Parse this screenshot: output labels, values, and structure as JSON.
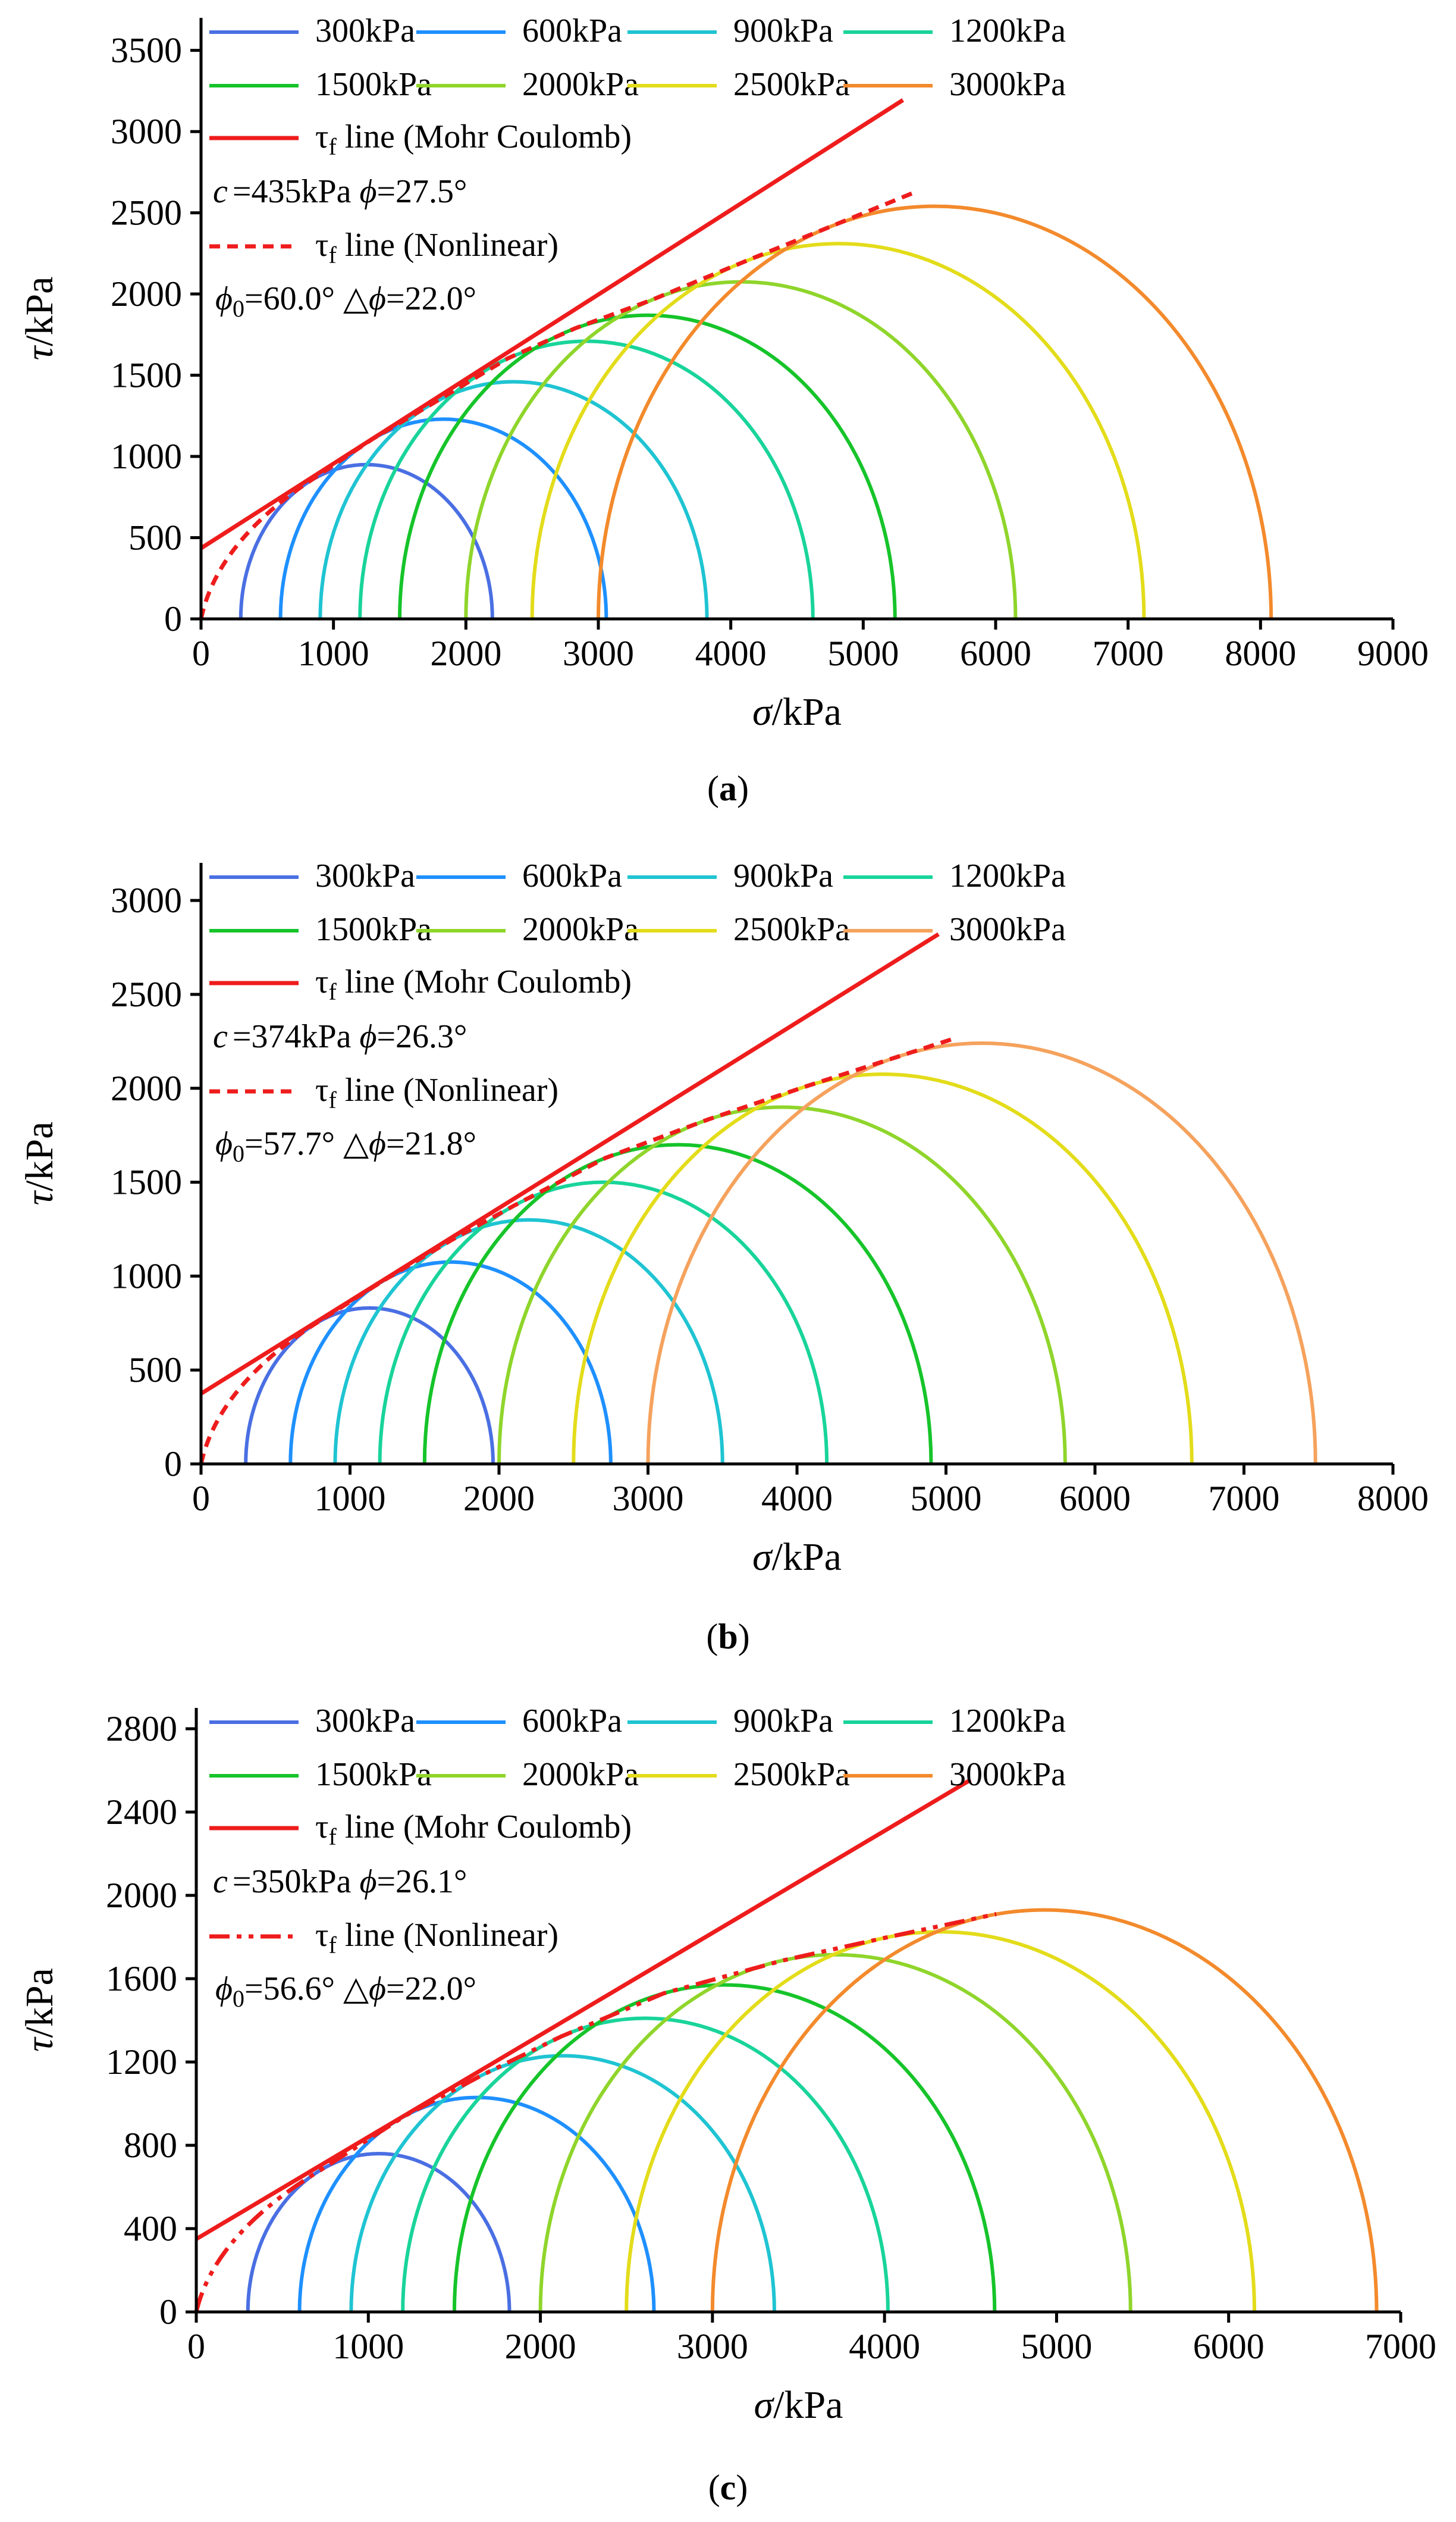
{
  "figure": {
    "panels": [
      {
        "label_open": "(",
        "label_letter": "a",
        "label_close": ")",
        "c_text": "=435kPa",
        "phi_text": "=27.5°",
        "phi0_text": "=60.0°",
        "dphi_text": "=22.0°"
      },
      {
        "label_open": "(",
        "label_letter": "b",
        "label_close": ")",
        "c_text": "=374kPa",
        "phi_text": "=26.3°",
        "phi0_text": "=57.7°",
        "dphi_text": "=21.8°"
      },
      {
        "label_open": "(",
        "label_letter": "c",
        "label_close": ")",
        "c_text": "=350kPa",
        "phi_text": "=26.1°",
        "phi0_text": "=56.6°",
        "dphi_text": "=22.0°"
      }
    ],
    "legend": {
      "mc_tau": "τ",
      "mc_sub": "f",
      "mc_rest": " line (Mohr Coulomb)",
      "nl_tau": "τ",
      "nl_sub": "f",
      "nl_rest": " line (Nonlinear)",
      "c_symbol": "c",
      "phi_symbol": "ϕ",
      "phi0_symbol": "ϕ",
      "phi0_sub": "0",
      "dphi_symbol": "△ϕ"
    },
    "axis_titles": {
      "x_sym": "σ",
      "x_unit": "/kPa",
      "y_sym": "τ",
      "y_unit": "/kPa"
    }
  },
  "chart_data": [
    {
      "type": "line",
      "title": "(a)",
      "xlabel": "σ/kPa",
      "ylabel": "τ/kPa",
      "xlim": [
        0,
        9000
      ],
      "ylim": [
        0,
        3700
      ],
      "xticks": [
        0,
        1000,
        2000,
        3000,
        4000,
        5000,
        6000,
        7000,
        8000,
        9000
      ],
      "yticks": [
        0,
        500,
        1000,
        1500,
        2000,
        2500,
        3000,
        3500
      ],
      "series": [
        {
          "name": "300kPa",
          "color": "#4a6fe3",
          "sigma3": 300,
          "sigma1": 2200
        },
        {
          "name": "600kPa",
          "color": "#1e90ff",
          "sigma3": 600,
          "sigma1": 3060
        },
        {
          "name": "900kPa",
          "color": "#1fc4d2",
          "sigma3": 900,
          "sigma1": 3820
        },
        {
          "name": "1200kPa",
          "color": "#19d49a",
          "sigma3": 1200,
          "sigma1": 4620
        },
        {
          "name": "1500kPa",
          "color": "#16c42a",
          "sigma3": 1500,
          "sigma1": 5240
        },
        {
          "name": "2000kPa",
          "color": "#8fd52b",
          "sigma3": 2000,
          "sigma1": 6150
        },
        {
          "name": "2500kPa",
          "color": "#e3dc1a",
          "sigma3": 2500,
          "sigma1": 7120
        },
        {
          "name": "3000kPa",
          "color": "#f38a2c",
          "sigma3": 3000,
          "sigma1": 8080
        }
      ],
      "mohr_coulomb": {
        "name": "τf line (Mohr Coulomb)",
        "color": "#ee1c1c",
        "c": 435,
        "phi": 27.5,
        "x_end": 5300
      },
      "nonlinear": {
        "name": "τf line (Nonlinear)",
        "color": "#ee1c1c",
        "phi0": 60.0,
        "dphi": 22.0,
        "style": "dash",
        "x_end": 5400
      },
      "legend": "top"
    },
    {
      "type": "line",
      "title": "(b)",
      "xlabel": "σ/kPa",
      "ylabel": "τ/kPa",
      "xlim": [
        0,
        8000
      ],
      "ylim": [
        0,
        3200
      ],
      "xticks": [
        0,
        1000,
        2000,
        3000,
        4000,
        5000,
        6000,
        7000,
        8000
      ],
      "yticks": [
        0,
        500,
        1000,
        1500,
        2000,
        2500,
        3000
      ],
      "series": [
        {
          "name": "300kPa",
          "color": "#4a6fe3",
          "sigma3": 300,
          "sigma1": 1960
        },
        {
          "name": "600kPa",
          "color": "#1e90ff",
          "sigma3": 600,
          "sigma1": 2750
        },
        {
          "name": "900kPa",
          "color": "#1fc4d2",
          "sigma3": 900,
          "sigma1": 3500
        },
        {
          "name": "1200kPa",
          "color": "#19d49a",
          "sigma3": 1200,
          "sigma1": 4200
        },
        {
          "name": "1500kPa",
          "color": "#16c42a",
          "sigma3": 1500,
          "sigma1": 4900
        },
        {
          "name": "2000kPa",
          "color": "#8fd52b",
          "sigma3": 2000,
          "sigma1": 5800
        },
        {
          "name": "2500kPa",
          "color": "#e3dc1a",
          "sigma3": 2500,
          "sigma1": 6650
        },
        {
          "name": "3000kPa",
          "color": "#f5a25d",
          "sigma3": 3000,
          "sigma1": 7480
        }
      ],
      "mohr_coulomb": {
        "name": "τf line (Mohr Coulomb)",
        "color": "#ee1c1c",
        "c": 374,
        "phi": 26.3,
        "x_end": 4950
      },
      "nonlinear": {
        "name": "τf line (Nonlinear)",
        "color": "#ee1c1c",
        "phi0": 57.7,
        "dphi": 21.8,
        "style": "dash",
        "x_end": 5050
      },
      "legend": "top"
    },
    {
      "type": "line",
      "title": "(c)",
      "xlabel": "σ/kPa",
      "ylabel": "τ/kPa",
      "xlim": [
        0,
        7000
      ],
      "ylim": [
        0,
        2900
      ],
      "xticks": [
        0,
        1000,
        2000,
        3000,
        4000,
        5000,
        6000,
        7000
      ],
      "yticks": [
        0,
        400,
        800,
        1200,
        1600,
        2000,
        2400,
        2800
      ],
      "series": [
        {
          "name": "300kPa",
          "color": "#4a6fe3",
          "sigma3": 300,
          "sigma1": 1820
        },
        {
          "name": "600kPa",
          "color": "#1e90ff",
          "sigma3": 600,
          "sigma1": 2660
        },
        {
          "name": "900kPa",
          "color": "#1fc4d2",
          "sigma3": 900,
          "sigma1": 3360
        },
        {
          "name": "1200kPa",
          "color": "#19d49a",
          "sigma3": 1200,
          "sigma1": 4020
        },
        {
          "name": "1500kPa",
          "color": "#16c42a",
          "sigma3": 1500,
          "sigma1": 4640
        },
        {
          "name": "2000kPa",
          "color": "#8fd52b",
          "sigma3": 2000,
          "sigma1": 5430
        },
        {
          "name": "2500kPa",
          "color": "#e3dc1a",
          "sigma3": 2500,
          "sigma1": 6150
        },
        {
          "name": "3000kPa",
          "color": "#f38a2c",
          "sigma3": 3000,
          "sigma1": 6860
        }
      ],
      "mohr_coulomb": {
        "name": "τf line (Mohr Coulomb)",
        "color": "#ee1c1c",
        "c": 350,
        "phi": 26.1,
        "x_end": 4500
      },
      "nonlinear": {
        "name": "τf line (Nonlinear)",
        "color": "#ee1c1c",
        "phi0": 56.6,
        "dphi": 22.0,
        "style": "dashdotdot",
        "x_end": 4650
      },
      "legend": "top"
    }
  ]
}
